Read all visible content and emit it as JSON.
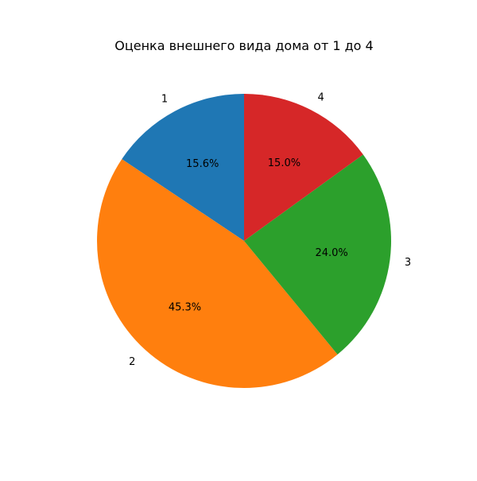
{
  "chart_data": {
    "type": "pie",
    "title": "Оценка внешнего вида дома от 1 до 4",
    "labels": [
      "1",
      "2",
      "3",
      "4"
    ],
    "values": [
      15.6,
      45.3,
      24.0,
      15.0
    ],
    "percent_labels": [
      "15.6%",
      "45.3%",
      "24.0%",
      "15.0%"
    ],
    "colors": [
      "#1f77b4",
      "#ff7f0e",
      "#2ca02c",
      "#d62728"
    ],
    "start_angle_deg": 90,
    "direction": "counterclockwise"
  }
}
